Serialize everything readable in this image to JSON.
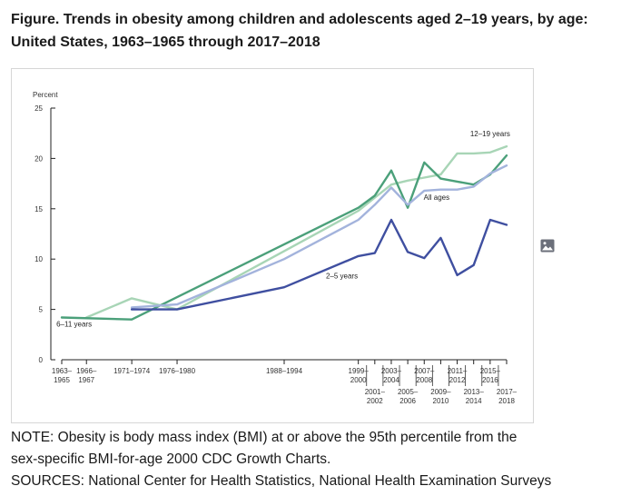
{
  "header": {
    "title_line1": "Figure. Trends in obesity among children and adolescents aged 2–19 years, by age:",
    "title_line2": "United States, 1963–1965 through 2017–2018"
  },
  "chart_data": {
    "type": "line",
    "ylabel": "Percent",
    "ylim": [
      0,
      25
    ],
    "yticks": [
      0,
      5,
      10,
      15,
      20,
      25
    ],
    "grid": false,
    "x_ticks": [
      {
        "x": 1964,
        "label": [
          "1963–",
          "1965"
        ],
        "row": 1
      },
      {
        "x": 1967,
        "label": [
          "1966–",
          "1967"
        ],
        "row": 1
      },
      {
        "x": 1972.5,
        "label": [
          "1971–1974"
        ],
        "row": 1
      },
      {
        "x": 1978,
        "label": [
          "1976–1980"
        ],
        "row": 1
      },
      {
        "x": 1991,
        "label": [
          "1988–1994"
        ],
        "row": 1
      },
      {
        "x": 2000,
        "label": [
          "1999–",
          "2000"
        ],
        "row": 1
      },
      {
        "x": 2002,
        "label": [
          "2001–",
          "2002"
        ],
        "row": 2
      },
      {
        "x": 2004,
        "label": [
          "2003–",
          "2004"
        ],
        "row": 1
      },
      {
        "x": 2006,
        "label": [
          "2005–",
          "2006"
        ],
        "row": 2
      },
      {
        "x": 2008,
        "label": [
          "2007–",
          "2008"
        ],
        "row": 1
      },
      {
        "x": 2010,
        "label": [
          "2009–",
          "2010"
        ],
        "row": 2
      },
      {
        "x": 2012,
        "label": [
          "2011–",
          "2012"
        ],
        "row": 1
      },
      {
        "x": 2014,
        "label": [
          "2013–",
          "2014"
        ],
        "row": 2
      },
      {
        "x": 2016,
        "label": [
          "2015–",
          "2016"
        ],
        "row": 1
      },
      {
        "x": 2018,
        "label": [
          "2017–",
          "2018"
        ],
        "row": 2
      }
    ],
    "separators": [
      2001,
      2003,
      2005,
      2007,
      2009,
      2011,
      2013,
      2015,
      2017
    ],
    "series": [
      {
        "name": "12–19 years",
        "color": "#a8d5b6",
        "x": [
          1967,
          1972.5,
          1978,
          2000,
          2002,
          2004,
          2006,
          2008,
          2010,
          2012,
          2014,
          2016,
          2018
        ],
        "y": [
          4.2,
          6.1,
          5.0,
          14.8,
          16.1,
          17.4,
          17.8,
          18.1,
          18.4,
          20.5,
          20.5,
          20.6,
          21.2
        ]
      },
      {
        "name": "6–11 years",
        "color": "#4ba07a",
        "x": [
          1964,
          1972.5,
          2000,
          2002,
          2004,
          2006,
          2008,
          2010,
          2012,
          2014,
          2016,
          2018
        ],
        "y": [
          4.2,
          4.0,
          15.1,
          16.3,
          18.8,
          15.1,
          19.6,
          18.0,
          17.7,
          17.4,
          18.4,
          20.3
        ]
      },
      {
        "name": "All ages",
        "color": "#a3b3dc",
        "x": [
          1972.5,
          1978,
          1991,
          2000,
          2002,
          2004,
          2006,
          2008,
          2010,
          2012,
          2014,
          2016,
          2018
        ],
        "y": [
          5.2,
          5.5,
          10.0,
          13.9,
          15.4,
          17.1,
          15.4,
          16.8,
          16.9,
          16.9,
          17.2,
          18.5,
          19.3
        ]
      },
      {
        "name": "2–5 years",
        "color": "#3f4fa0",
        "x": [
          1972.5,
          1978,
          1991,
          2000,
          2002,
          2004,
          2006,
          2008,
          2010,
          2012,
          2014,
          2016,
          2018
        ],
        "y": [
          5.0,
          5.0,
          7.2,
          10.3,
          10.6,
          13.9,
          10.7,
          10.1,
          12.1,
          8.4,
          9.4,
          13.9,
          13.4
        ]
      }
    ],
    "labels": [
      {
        "text": "12–19 years",
        "x": 2016,
        "y": 22.2
      },
      {
        "text": "All ages",
        "x": 2009.5,
        "y": 15.9
      },
      {
        "text": "2–5 years",
        "x": 1998,
        "y": 8.1
      },
      {
        "text": "6–11 years",
        "x": 1965.5,
        "y": 3.3
      }
    ]
  },
  "image_icon": "image-icon",
  "note": {
    "line1": "NOTE: Obesity is body mass index (BMI) at or above the 95th percentile from the",
    "line2": "sex-specific BMI-for-age 2000 CDC Growth Charts.",
    "line3": "SOURCES: National Center for Health Statistics, National Health Examination Surveys"
  }
}
